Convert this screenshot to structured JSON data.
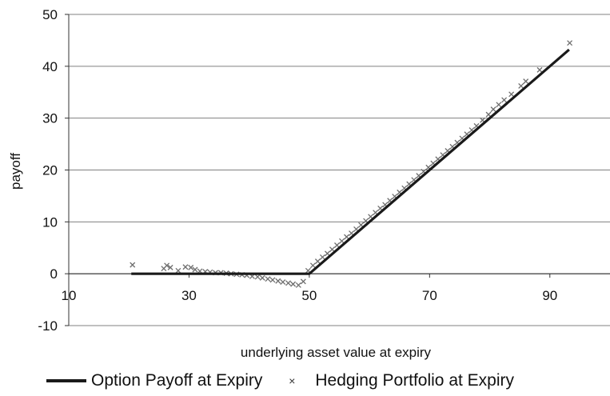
{
  "chart_data": {
    "type": "scatter",
    "title": "",
    "xlabel": "underlying asset value at expiry",
    "ylabel": "payoff",
    "xlim": [
      10,
      100
    ],
    "ylim": [
      -10,
      50
    ],
    "x_ticks": [
      10,
      30,
      50,
      70,
      90
    ],
    "y_ticks": [
      -10,
      0,
      10,
      20,
      30,
      40,
      50
    ],
    "grid": "horizontal",
    "legend_position": "bottom",
    "colors": {
      "option_line": "#1a1a1a",
      "hedge_markers": "#6e6e6e",
      "grid": "#808080"
    },
    "series": [
      {
        "name": "Option Payoff at Expiry",
        "kind": "line",
        "x": [
          20.4,
          50,
          93.2
        ],
        "y": [
          0,
          0,
          43.2
        ]
      },
      {
        "name": "Hedging Portfolio at Expiry",
        "kind": "scatter",
        "marker": "x",
        "x": [
          20.6,
          25.8,
          26.3,
          26.9,
          28.2,
          29.4,
          30.3,
          31.0,
          31.8,
          32.7,
          33.5,
          34.4,
          35.3,
          36.2,
          37.0,
          37.9,
          38.8,
          39.6,
          40.5,
          41.4,
          42.2,
          43.1,
          43.9,
          44.8,
          45.6,
          46.5,
          47.3,
          48.2,
          49.0,
          49.8,
          50.6,
          51.4,
          52.2,
          53.0,
          53.8,
          54.6,
          55.4,
          56.2,
          57.0,
          57.8,
          58.6,
          59.4,
          60.2,
          61.0,
          61.8,
          62.6,
          63.4,
          64.2,
          65.0,
          65.8,
          66.6,
          67.4,
          68.2,
          69.0,
          69.8,
          70.6,
          71.4,
          72.2,
          73.0,
          73.8,
          74.6,
          75.4,
          76.2,
          77.0,
          77.8,
          78.8,
          79.8,
          80.6,
          81.5,
          82.4,
          83.6,
          85.2,
          86.0,
          88.3,
          93.3
        ],
        "y": [
          1.7,
          1.0,
          1.6,
          1.2,
          0.6,
          1.3,
          1.2,
          0.8,
          0.5,
          0.4,
          0.3,
          0.2,
          0.2,
          0.1,
          0.0,
          -0.1,
          -0.2,
          -0.3,
          -0.5,
          -0.6,
          -0.8,
          -1.0,
          -1.2,
          -1.4,
          -1.6,
          -1.8,
          -2.0,
          -2.2,
          -1.5,
          0.6,
          1.6,
          2.4,
          3.2,
          3.9,
          4.7,
          5.5,
          6.3,
          7.1,
          7.8,
          8.6,
          9.4,
          10.2,
          11.0,
          11.8,
          12.6,
          13.3,
          14.1,
          14.9,
          15.7,
          16.5,
          17.3,
          18.1,
          18.9,
          19.7,
          20.5,
          21.3,
          22.1,
          22.9,
          23.7,
          24.5,
          25.3,
          26.1,
          26.9,
          27.7,
          28.5,
          29.6,
          30.7,
          31.7,
          32.6,
          33.5,
          34.6,
          36.2,
          37.1,
          39.3,
          44.5
        ]
      }
    ]
  }
}
